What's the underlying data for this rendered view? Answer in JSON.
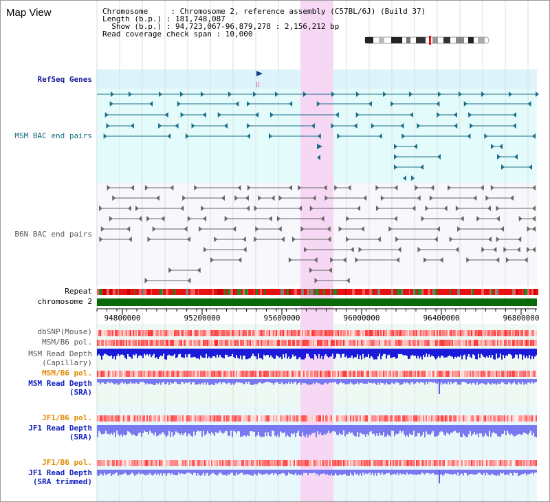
{
  "page": {
    "title": "Map View"
  },
  "header": {
    "line1": "Chromosome     : Chromosome 2, reference assembly (C57BL/6J) (Build 37)",
    "line2": "Length (b.p.) : 181,748,087",
    "line3": "  Show (b.p.) : 94,723,067-96,879,278 : 2,156,212 bp",
    "line4": "Read coverage check span : 10,000"
  },
  "colors": {
    "refseq_bg": "#dcf3fb",
    "msm_bac_bg": "#e4fbfb",
    "b6n_bg": "#f7f7fc",
    "selection": "#f7d6f3",
    "repeat": "#e81010",
    "chromosome_band": "#0a6a0a",
    "msm_depth": "#1a1ad8",
    "sra_depth": "#7878f0"
  },
  "tracks": {
    "refseq": "RefSeq Genes",
    "msm_bac": "MSM BAC end pairs",
    "b6n_bac": "B6N BAC end pairs",
    "repeat": "Repeat",
    "chromosome": "chromosome 2",
    "dbsnp": "dbSNP(Mouse)",
    "msm_pol": "MSM/B6 pol.",
    "msm_depth_cap_1": "MSM Read Depth",
    "msm_depth_cap_2": "(Capillary)",
    "msm_pol_2": "MSM/B6 pol.",
    "msm_depth_sra_1": "MSM Read Depth",
    "msm_depth_sra_2": "(SRA)",
    "jf1_pol_1": "JF1/B6 pol.",
    "jf1_depth_sra_1": "JF1 Read Depth",
    "jf1_depth_sra_2": "(SRA)",
    "jf1_pol_2": "JF1/B6 pol.",
    "jf1_depth_trim_1": "JF1 Read Depth",
    "jf1_depth_trim_2": "(SRA trimmed)"
  },
  "axis": {
    "ticks": [
      "94800000",
      "95200000",
      "95600000",
      "96000000",
      "96400000",
      "96800000"
    ]
  },
  "ideogram": {
    "selected_region_color": "#e01010"
  }
}
